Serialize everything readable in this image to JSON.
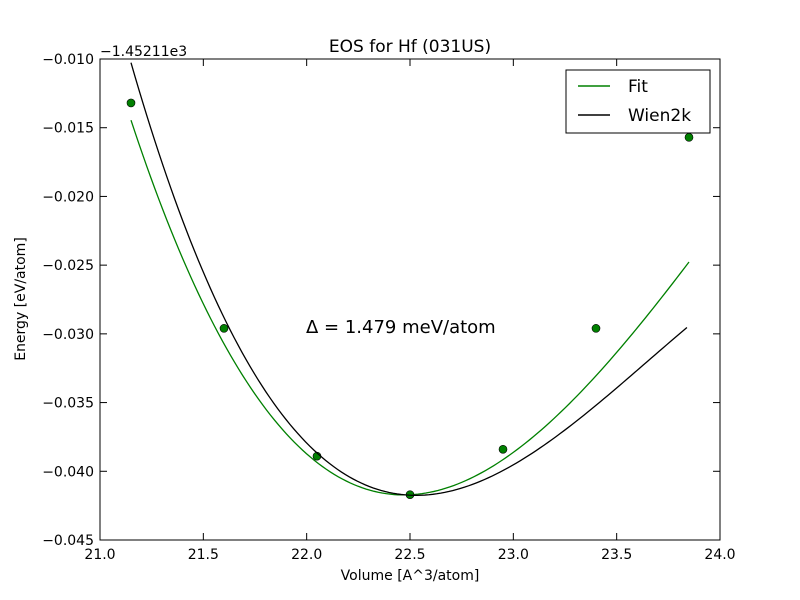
{
  "chart_data": {
    "type": "line",
    "title": "EOS for Hf (031US)",
    "xlabel": "Volume [A^3/atom]",
    "ylabel": "Energy [eV/atom]",
    "offset_label": "−1.45211e3",
    "annotation": "Δ = 1.479 meV/atom",
    "xlim": [
      21.0,
      24.0
    ],
    "ylim": [
      -0.045,
      -0.01
    ],
    "x_ticks": [
      21.0,
      21.5,
      22.0,
      22.5,
      23.0,
      23.5,
      24.0
    ],
    "x_tick_labels": [
      "21.0",
      "21.5",
      "22.0",
      "22.5",
      "23.0",
      "23.5",
      "24.0"
    ],
    "y_ticks": [
      -0.045,
      -0.04,
      -0.035,
      -0.03,
      -0.025,
      -0.02,
      -0.015,
      -0.01
    ],
    "y_tick_labels": [
      "−0.045",
      "−0.040",
      "−0.035",
      "−0.030",
      "−0.025",
      "−0.020",
      "−0.015",
      "−0.010"
    ],
    "grid": false,
    "legend_position": "top-right",
    "series": [
      {
        "name": "Fit",
        "color": "#008000",
        "style": "line",
        "curve": {
          "v0": 22.47,
          "e0": -0.04172,
          "c2": 0.01235,
          "c3": -0.0025
        },
        "x_range": [
          21.15,
          23.85
        ],
        "markers": {
          "x": [
            21.15,
            21.6,
            22.05,
            22.5,
            22.95,
            23.4,
            23.85
          ],
          "y": [
            -0.0132,
            -0.0296,
            -0.0389,
            -0.0417,
            -0.0384,
            -0.0296,
            -0.0157
          ]
        }
      },
      {
        "name": "Wien2k",
        "color": "#000000",
        "style": "line",
        "curve": {
          "v0": 22.53,
          "e0": -0.04175,
          "c2": 0.0117,
          "c3": -0.0035
        },
        "x_range": [
          21.15,
          23.84
        ]
      }
    ]
  }
}
